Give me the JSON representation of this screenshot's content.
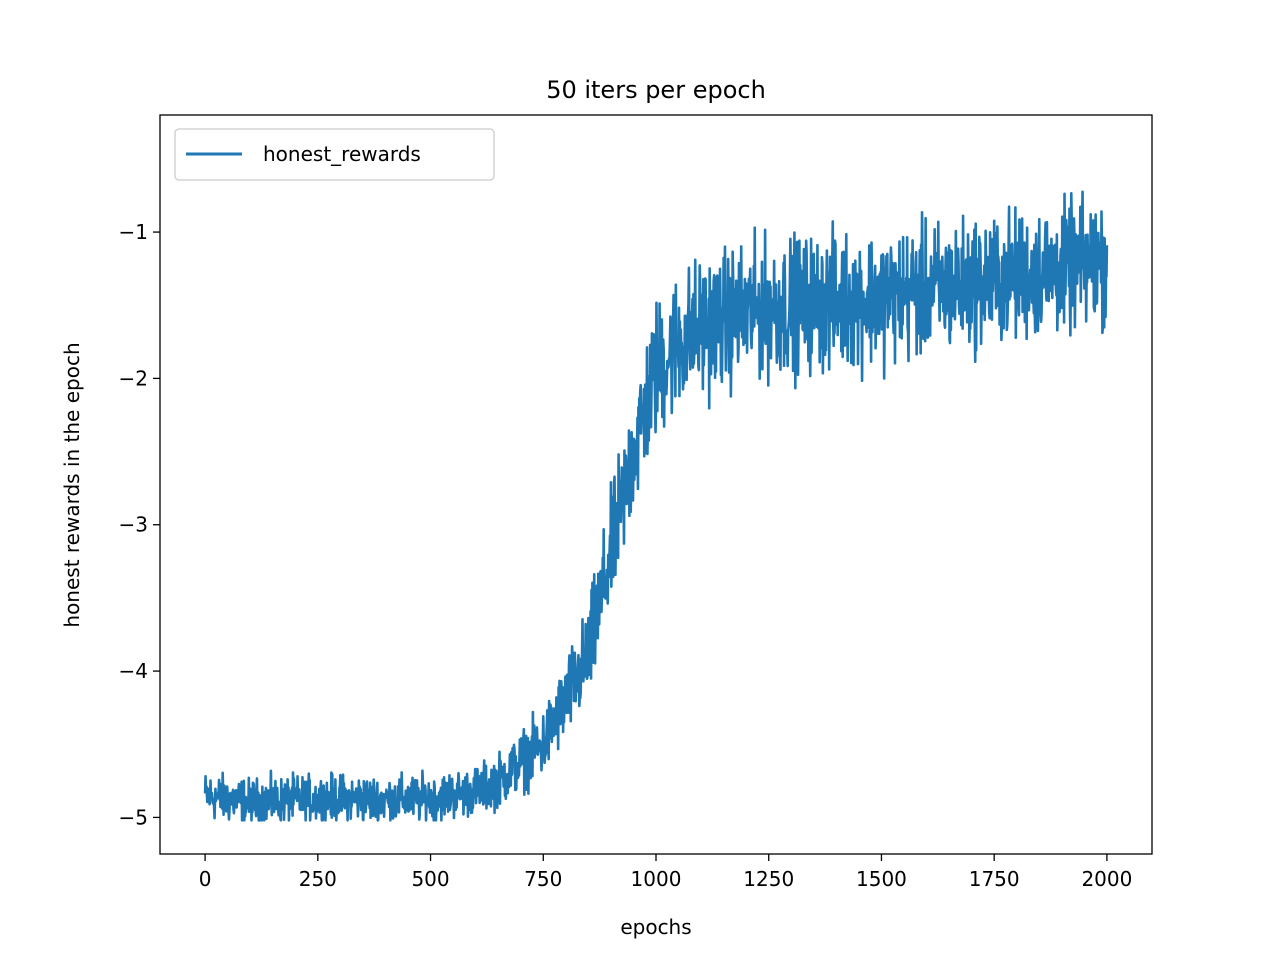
{
  "chart_data": {
    "type": "line",
    "title": "50 iters per epoch",
    "xlabel": "epochs",
    "ylabel": "honest rewards in the epoch",
    "xlim": [
      -100,
      2100
    ],
    "ylim": [
      -5.25,
      -0.2
    ],
    "xticks": [
      0,
      250,
      500,
      750,
      1000,
      1250,
      1500,
      1750,
      2000
    ],
    "xtick_labels": [
      "0",
      "250",
      "500",
      "750",
      "1000",
      "1250",
      "1500",
      "1750",
      "2000"
    ],
    "yticks": [
      -5,
      -4,
      -3,
      -2,
      -1
    ],
    "ytick_labels": [
      "−5",
      "−4",
      "−3",
      "−2",
      "−1"
    ],
    "grid": false,
    "legend": "upper-left",
    "series": [
      {
        "name": "honest_rewards",
        "color": "#1f77b4",
        "x_start": 0,
        "x_end": 2000,
        "trend": [
          [
            0,
            -4.85
          ],
          [
            100,
            -4.9
          ],
          [
            200,
            -4.88
          ],
          [
            300,
            -4.87
          ],
          [
            400,
            -4.88
          ],
          [
            500,
            -4.87
          ],
          [
            600,
            -4.82
          ],
          [
            650,
            -4.75
          ],
          [
            700,
            -4.62
          ],
          [
            750,
            -4.5
          ],
          [
            800,
            -4.2
          ],
          [
            850,
            -3.9
          ],
          [
            900,
            -3.2
          ],
          [
            950,
            -2.5
          ],
          [
            1000,
            -1.95
          ],
          [
            1050,
            -1.75
          ],
          [
            1100,
            -1.65
          ],
          [
            1200,
            -1.55
          ],
          [
            1300,
            -1.5
          ],
          [
            1500,
            -1.45
          ],
          [
            1700,
            -1.35
          ],
          [
            1900,
            -1.25
          ],
          [
            2000,
            -1.2
          ]
        ],
        "noise": [
          [
            0,
            0.12
          ],
          [
            600,
            0.12
          ],
          [
            700,
            0.15
          ],
          [
            800,
            0.2
          ],
          [
            900,
            0.3
          ],
          [
            1000,
            0.35
          ],
          [
            1100,
            0.35
          ],
          [
            2000,
            0.32
          ]
        ],
        "min": -5.02,
        "max": -0.28
      }
    ]
  }
}
